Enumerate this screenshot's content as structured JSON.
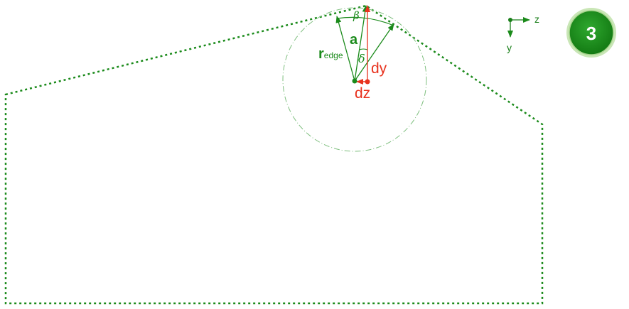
{
  "badge": {
    "text": "3",
    "color": "#1f8f1f"
  },
  "axes": {
    "z_label": "z",
    "y_label": "y",
    "color": "#1a7f1a"
  },
  "labels": {
    "a": "a",
    "r": "r",
    "r_sub": "edge",
    "beta": "β",
    "delta": "δ",
    "dy": "dy",
    "dz": "dz"
  },
  "colors": {
    "green": "#1a8a1a",
    "red": "#e8321e",
    "circle": "#7fbf7f"
  }
}
